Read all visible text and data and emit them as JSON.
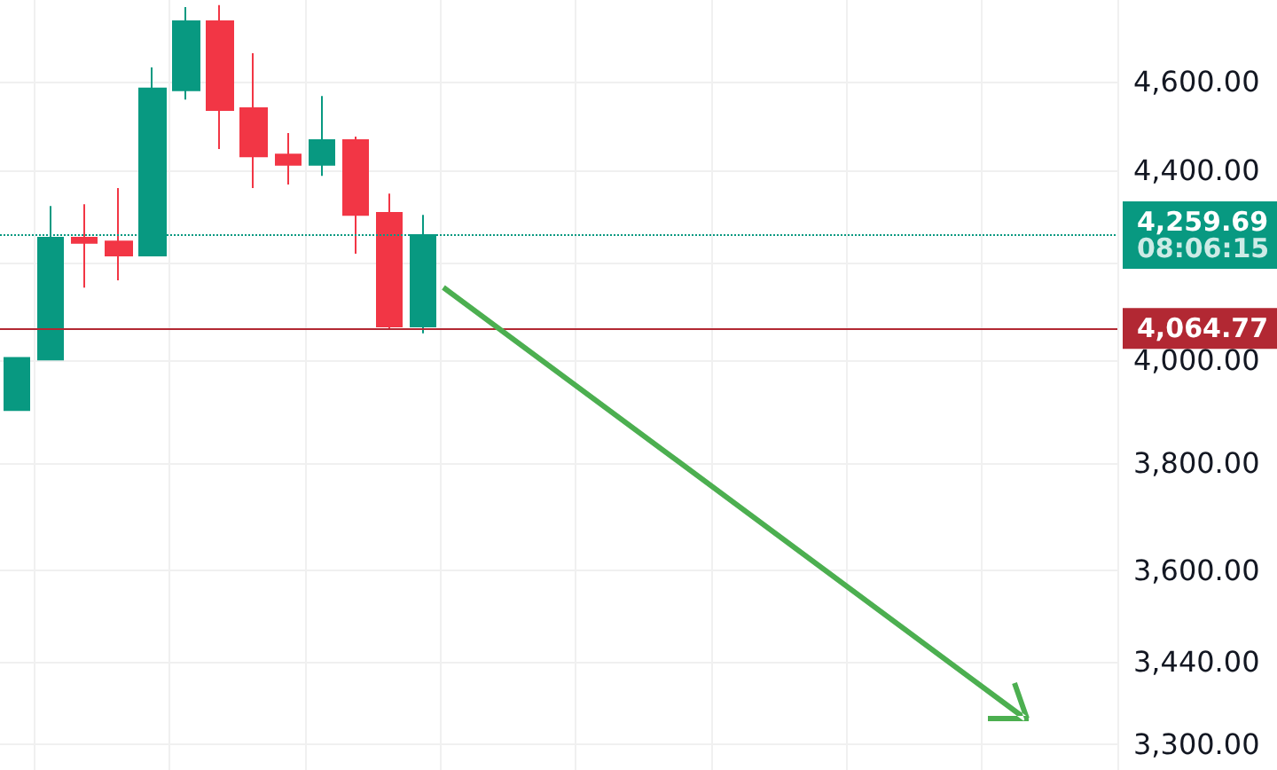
{
  "chart_data": {
    "type": "candlestick",
    "categories": [
      null,
      null,
      null,
      null,
      null,
      null,
      null,
      null,
      null,
      null,
      null,
      null,
      null,
      null,
      null,
      null,
      null,
      null,
      null,
      null,
      null,
      null,
      null,
      null,
      null,
      null,
      null,
      null,
      null,
      null,
      null,
      null,
      null
    ],
    "ohlc": [
      [
        3902,
        4005,
        3902,
        4005
      ],
      [
        4002,
        4322,
        4002,
        4254
      ],
      [
        4254,
        4326,
        4149,
        4243
      ],
      [
        4246,
        4361,
        4164,
        4216
      ],
      [
        4216,
        4633,
        4216,
        4584
      ],
      [
        4580,
        4775,
        4559,
        4741
      ],
      [
        4741,
        4780,
        4447,
        4535
      ],
      [
        4539,
        4666,
        4361,
        4431
      ],
      [
        4435,
        4483,
        4369,
        4412
      ],
      [
        4412,
        4567,
        4388,
        4467
      ],
      [
        4467,
        4475,
        4220,
        4303
      ],
      [
        4307,
        4349,
        4062,
        4069
      ],
      [
        4069,
        4303,
        4055,
        4259.69
      ],
      null,
      null,
      null,
      null,
      null,
      null,
      null,
      null,
      null,
      null,
      null,
      null,
      null,
      null,
      null,
      null,
      null,
      null,
      null,
      null
    ],
    "colors": [
      "#089981",
      "#089981",
      "#f23645",
      "#f23645",
      "#089981",
      "#089981",
      "#f23645",
      "#f23645",
      "#f23645",
      "#089981",
      "#f23645",
      "#f23645",
      "#089981",
      null,
      null,
      null,
      null,
      null,
      null,
      null,
      null,
      null,
      null,
      null,
      null,
      null,
      null,
      null,
      null,
      null,
      null,
      null,
      null
    ],
    "log": "y",
    "ylim": [
      3258,
      4792
    ],
    "yticks": [
      {
        "value": 3300,
        "label": "3,300.00"
      },
      {
        "value": 3440,
        "label": "3,440.00"
      },
      {
        "value": 3600,
        "label": "3,600.00"
      },
      {
        "value": 3800,
        "label": "3,800.00"
      },
      {
        "value": 4000,
        "label": "4,000.00"
      },
      {
        "value": 4200,
        "label": null
      },
      {
        "value": 4400,
        "label": "4,400.00"
      },
      {
        "value": 4600,
        "label": "4,600.00"
      }
    ],
    "ref_lines": [
      {
        "axis": "y",
        "value": 4259.69,
        "label": "4,259.69",
        "color": "#089981",
        "line_style": "dotted"
      },
      {
        "axis": "y",
        "value": 4064.77,
        "label": "4,064.77",
        "color": "#b22833",
        "line_style": "solid"
      }
    ],
    "annotations": [
      "08:06:15"
    ],
    "grid": true,
    "tick_labels": "y"
  }
}
